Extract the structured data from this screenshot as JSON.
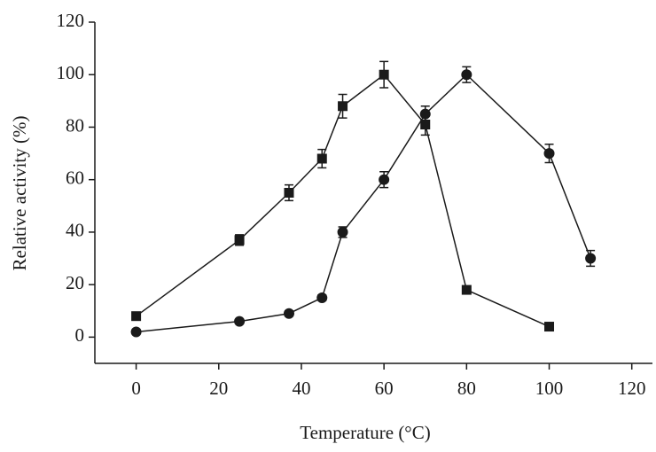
{
  "chart_data": {
    "type": "line",
    "x_label": "Temperature (°C)",
    "y_label": "Relative activity (%)",
    "xlim": [
      -10,
      125
    ],
    "xticks": [
      0,
      20,
      40,
      60,
      80,
      100,
      120
    ],
    "ylim": [
      -10,
      120
    ],
    "yticks": [
      0,
      20,
      40,
      60,
      80,
      100,
      120
    ],
    "series": [
      {
        "marker": "square",
        "color": "#1a1a1a",
        "x": [
          0,
          25,
          37,
          45,
          50,
          60,
          70,
          80,
          100
        ],
        "values": [
          8,
          37,
          55,
          68,
          88,
          100,
          81,
          18,
          4
        ],
        "errors": [
          1,
          2,
          3,
          3.5,
          4.5,
          5,
          4,
          1,
          1
        ]
      },
      {
        "marker": "circle",
        "color": "#1a1a1a",
        "x": [
          0,
          25,
          37,
          45,
          50,
          60,
          70,
          80,
          100,
          110
        ],
        "values": [
          2,
          6,
          9,
          15,
          40,
          60,
          85,
          100,
          70,
          30
        ],
        "errors": [
          0.5,
          0.5,
          1,
          1,
          2,
          3,
          3,
          3,
          3.5,
          3
        ]
      }
    ]
  }
}
